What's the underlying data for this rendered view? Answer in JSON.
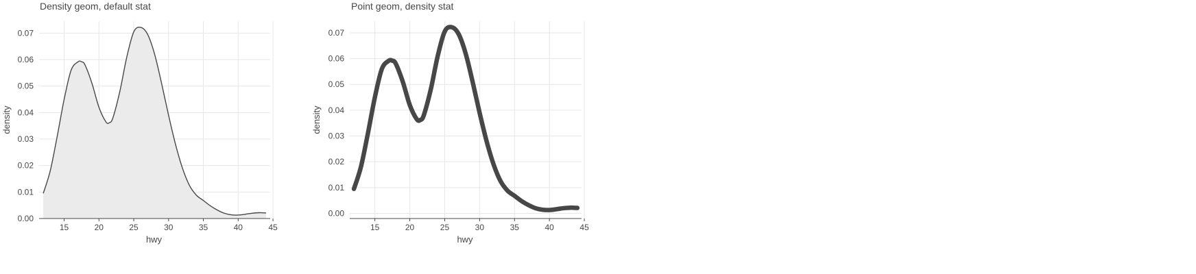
{
  "chart_data": [
    {
      "type": "area",
      "title": "Density geom, default stat",
      "xlabel": "hwy",
      "ylabel": "density",
      "xlim": [
        11.4,
        44.6
      ],
      "ylim": [
        0,
        0.0745
      ],
      "xticks": [
        15,
        20,
        25,
        30,
        35,
        40,
        45
      ],
      "yticks": [
        0,
        0.01,
        0.02,
        0.03,
        0.04,
        0.05,
        0.06,
        0.07
      ],
      "ytick_labels": [
        "0.00",
        "0.01",
        "0.02",
        "0.03",
        "0.04",
        "0.05",
        "0.06",
        "0.07"
      ],
      "grid": true,
      "fill_color": "#ebebeb",
      "line_color": "#474747",
      "line_width": 1.4,
      "x": [
        12,
        13,
        14,
        15,
        16,
        17,
        17.5,
        18,
        19,
        20,
        21,
        21.5,
        22,
        23,
        24,
        25,
        26,
        27,
        28,
        29,
        30,
        31,
        32,
        33,
        34,
        35,
        36,
        37,
        38,
        39,
        40,
        41,
        42,
        43,
        44
      ],
      "y": [
        0.0095,
        0.018,
        0.031,
        0.045,
        0.056,
        0.0592,
        0.0592,
        0.058,
        0.051,
        0.042,
        0.0365,
        0.0362,
        0.038,
        0.048,
        0.061,
        0.0705,
        0.0722,
        0.0695,
        0.062,
        0.051,
        0.039,
        0.028,
        0.019,
        0.0125,
        0.0088,
        0.0068,
        0.0048,
        0.0032,
        0.002,
        0.0014,
        0.0013,
        0.0016,
        0.002,
        0.0022,
        0.0021
      ]
    },
    {
      "type": "line",
      "title": "Point geom, density stat",
      "xlabel": "hwy",
      "ylabel": "density",
      "xlim": [
        11.4,
        44.6
      ],
      "ylim": [
        -0.002,
        0.0745
      ],
      "xticks": [
        15,
        20,
        25,
        30,
        35,
        40,
        45
      ],
      "yticks": [
        0,
        0.01,
        0.02,
        0.03,
        0.04,
        0.05,
        0.06,
        0.07
      ],
      "ytick_labels": [
        "0.00",
        "0.01",
        "0.02",
        "0.03",
        "0.04",
        "0.05",
        "0.06",
        "0.07"
      ],
      "grid": true,
      "line_color": "#474747",
      "line_width": 6.5,
      "x": [
        12,
        13,
        14,
        15,
        16,
        17,
        17.5,
        18,
        19,
        20,
        21,
        21.5,
        22,
        23,
        24,
        25,
        26,
        27,
        28,
        29,
        30,
        31,
        32,
        33,
        34,
        35,
        36,
        37,
        38,
        39,
        40,
        41,
        42,
        43,
        44
      ],
      "y": [
        0.0095,
        0.018,
        0.031,
        0.045,
        0.056,
        0.0592,
        0.0592,
        0.058,
        0.051,
        0.042,
        0.0365,
        0.0362,
        0.038,
        0.048,
        0.061,
        0.0705,
        0.0722,
        0.0695,
        0.062,
        0.051,
        0.039,
        0.028,
        0.019,
        0.0125,
        0.0088,
        0.0068,
        0.0048,
        0.0032,
        0.002,
        0.0014,
        0.0013,
        0.0016,
        0.002,
        0.0022,
        0.0021
      ]
    }
  ]
}
